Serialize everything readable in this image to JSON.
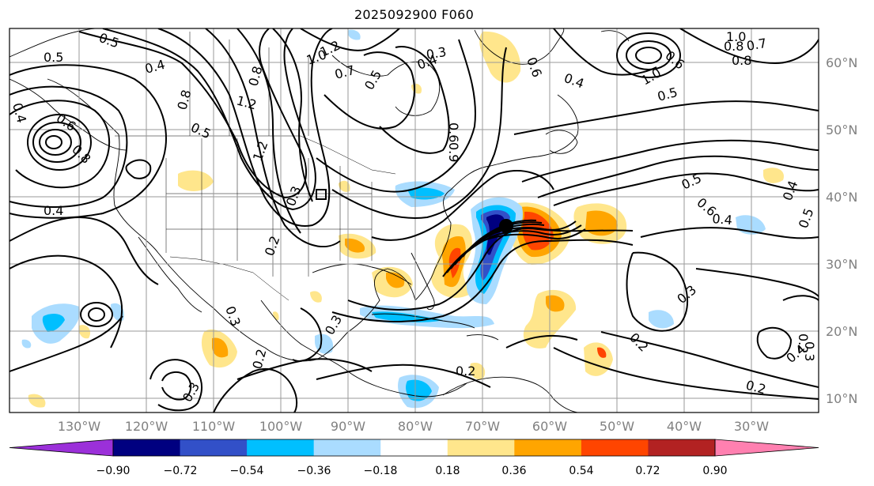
{
  "title": "2025092900 F060",
  "lon_labels": [
    "130°W",
    "120°W",
    "110°W",
    "100°W",
    "90°W",
    "80°W",
    "70°W",
    "60°W",
    "50°W",
    "40°W",
    "30°W"
  ],
  "lat_labels": [
    "60°N",
    "50°N",
    "40°N",
    "30°N",
    "20°N",
    "10°N"
  ],
  "colorbar": {
    "ticks": [
      "−0.90",
      "−0.72",
      "−0.54",
      "−0.36",
      "−0.18",
      "0.18",
      "0.36",
      "0.54",
      "0.72",
      "0.90"
    ],
    "colors": [
      "#9b30d9",
      "#000080",
      "#3250c8",
      "#00bfff",
      "#aadcff",
      "#ffffff",
      "#ffe68c",
      "#ffa500",
      "#ff4500",
      "#b22222",
      "#ff80b0"
    ]
  },
  "contour_labels": [
    "0.5",
    "0.5",
    "0.4",
    "0.4",
    "0.6",
    "0.8",
    "0.4",
    "0.8",
    "0.5",
    "1.2",
    "1.0",
    "1.2",
    "0.7",
    "0.5",
    "1.2",
    "0.8",
    "0.3",
    "0.4",
    "0.6",
    "0.9",
    "0.3",
    "0.6",
    "0.4",
    "0.8",
    "0.7",
    "0.6",
    "1.0",
    "1.0",
    "0.8",
    "0.5",
    "0.5",
    "0.6",
    "0.4",
    "0.4",
    "0.5",
    "0.2",
    "0.3",
    "0.2",
    "0.3",
    "0.2",
    "0.3",
    "0.2",
    "0.2",
    "0.2",
    "0.3",
    "0.4",
    "0.3"
  ],
  "storm_center_marker": "black dot"
}
